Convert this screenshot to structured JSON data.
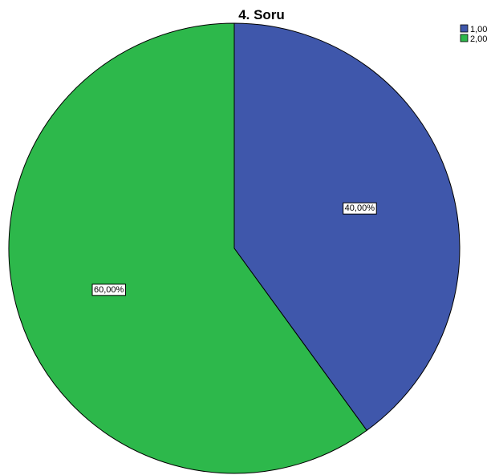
{
  "chart_data": {
    "type": "pie",
    "title": "4. Soru",
    "categories": [
      "1,00",
      "2,00"
    ],
    "values": [
      40,
      60
    ],
    "data_labels": [
      "40,00%",
      "60,00%"
    ],
    "colors": [
      "#3f57ab",
      "#2db84b"
    ],
    "start": "top, clockwise",
    "legend_position": "top-right"
  }
}
